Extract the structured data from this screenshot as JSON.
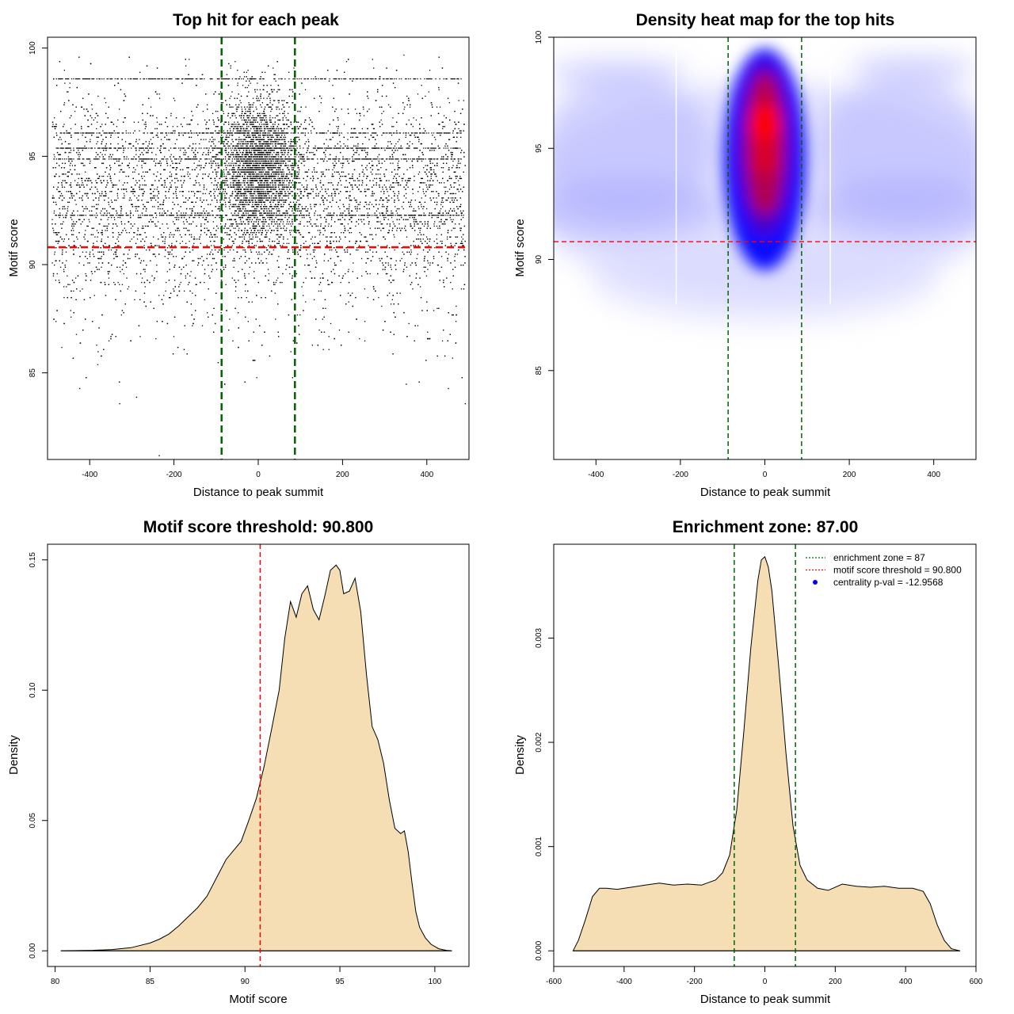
{
  "chart_data": [
    {
      "type": "scatter",
      "title": "Top hit for each peak",
      "xlabel": "Distance to peak summit",
      "ylabel": "Motif score",
      "xlim": [
        -500,
        500
      ],
      "ylim": [
        81,
        100.5
      ],
      "xticks": [
        -400,
        -200,
        0,
        200,
        400
      ],
      "yticks": [
        85,
        90,
        95,
        100
      ],
      "reference_lines": {
        "vertical": [
          -87,
          87
        ],
        "horizontal": 90.8
      },
      "points_described": "roughly 10000 top hits spanning -490..490 bp, concentrated between -87 and 87 bp and between 91 and 99 motif score; sparse low-score outliers down to 81",
      "outliers": [
        {
          "x": -236,
          "y": 81.2
        },
        {
          "x": -330,
          "y": 83.6
        },
        {
          "x": -290,
          "y": 83.9
        },
        {
          "x": -425,
          "y": 84.3
        },
        {
          "x": 490,
          "y": 83.6
        },
        {
          "x": 450,
          "y": 84.3
        },
        {
          "x": 350,
          "y": 84.5
        }
      ]
    },
    {
      "type": "heatmap",
      "title": "Density heat map for the top hits",
      "xlabel": "Distance to peak summit",
      "ylabel": "Motif score",
      "xlim": [
        -500,
        500
      ],
      "ylim": [
        81,
        100
      ],
      "xticks": [
        -400,
        -200,
        0,
        200,
        400
      ],
      "yticks": [
        85,
        90,
        95,
        100
      ],
      "reference_lines": {
        "vertical": [
          -87,
          87
        ],
        "horizontal": 90.8
      },
      "palette": [
        "#ffffff",
        "#0000ff",
        "#ff0000"
      ],
      "density_peak": {
        "x": 0,
        "y": 96
      }
    },
    {
      "type": "area",
      "title": "Motif score threshold: 90.800",
      "xlabel": "Motif score",
      "ylabel": "Density",
      "xlim": [
        79.6,
        101.8
      ],
      "ylim": [
        -0.006,
        0.156
      ],
      "xticks": [
        80,
        85,
        90,
        95,
        100
      ],
      "yticks": [
        0.0,
        0.05,
        0.1,
        0.15
      ],
      "ytick_labels": [
        "0.00",
        "0.05",
        "0.10",
        "0.15"
      ],
      "reference_lines": {
        "vertical": [
          90.8
        ]
      },
      "fill": "#f5deb3",
      "x": [
        80.3,
        82,
        83,
        84,
        85,
        85.5,
        86,
        86.5,
        87,
        87.5,
        88,
        88.5,
        89,
        89.4,
        89.8,
        90.2,
        90.6,
        91,
        91.4,
        91.8,
        92.1,
        92.4,
        92.7,
        93,
        93.3,
        93.6,
        93.9,
        94.2,
        94.5,
        94.8,
        95.0,
        95.2,
        95.5,
        95.8,
        96.1,
        96.4,
        96.7,
        97.0,
        97.3,
        97.6,
        97.9,
        98.2,
        98.4,
        98.6,
        98.8,
        99.0,
        99.2,
        99.5,
        99.8,
        100.2,
        100.6,
        100.9
      ],
      "y": [
        0,
        0.0002,
        0.0005,
        0.0012,
        0.003,
        0.0045,
        0.0065,
        0.0095,
        0.013,
        0.0165,
        0.021,
        0.028,
        0.035,
        0.0385,
        0.042,
        0.05,
        0.0585,
        0.0705,
        0.085,
        0.1,
        0.12,
        0.134,
        0.128,
        0.137,
        0.14,
        0.131,
        0.127,
        0.136,
        0.146,
        0.148,
        0.146,
        0.137,
        0.138,
        0.143,
        0.13,
        0.106,
        0.086,
        0.081,
        0.072,
        0.058,
        0.047,
        0.045,
        0.046,
        0.038,
        0.026,
        0.015,
        0.009,
        0.005,
        0.0025,
        0.0008,
        0.0002,
        0
      ]
    },
    {
      "type": "area",
      "title": "Enrichment zone: 87.00",
      "xlabel": "Distance to peak summit",
      "ylabel": "Density",
      "xlim": [
        -600,
        600
      ],
      "ylim": [
        -0.00015,
        0.0039
      ],
      "xticks": [
        -600,
        -400,
        -200,
        0,
        200,
        400,
        600
      ],
      "yticks": [
        0,
        0.001,
        0.002,
        0.003
      ],
      "ytick_labels": [
        "0.000",
        "0.001",
        "0.002",
        "0.003"
      ],
      "reference_lines": {
        "vertical": [
          -87,
          87
        ]
      },
      "fill": "#f5deb3",
      "x": [
        -545,
        -530,
        -510,
        -490,
        -470,
        -450,
        -420,
        -380,
        -340,
        -300,
        -260,
        -220,
        -180,
        -140,
        -120,
        -100,
        -80,
        -60,
        -40,
        -20,
        -10,
        0,
        10,
        20,
        40,
        60,
        80,
        100,
        120,
        150,
        180,
        220,
        260,
        300,
        340,
        380,
        420,
        450,
        470,
        490,
        510,
        530,
        555
      ],
      "y": [
        0,
        0.0001,
        0.0003,
        0.00052,
        0.0006,
        0.0006,
        0.00059,
        0.00061,
        0.00063,
        0.00065,
        0.00063,
        0.00064,
        0.00063,
        0.00068,
        0.00075,
        0.00092,
        0.00135,
        0.0021,
        0.0029,
        0.00355,
        0.00375,
        0.00378,
        0.00368,
        0.00345,
        0.0027,
        0.0019,
        0.0012,
        0.00082,
        0.00068,
        0.0006,
        0.00058,
        0.00064,
        0.00062,
        0.00061,
        0.00062,
        0.0006,
        0.0006,
        0.00057,
        0.00045,
        0.00025,
        0.0001,
        2e-05,
        0
      ],
      "legend": [
        {
          "label": "enrichment zone = 87",
          "color": "#006400",
          "style": "dotted"
        },
        {
          "label": "motif score threshold = 90.800",
          "color": "#ff0000",
          "style": "dotted"
        },
        {
          "label": "centrality p-val = -12.9568",
          "color": "#0000ff",
          "style": "point"
        }
      ]
    }
  ]
}
